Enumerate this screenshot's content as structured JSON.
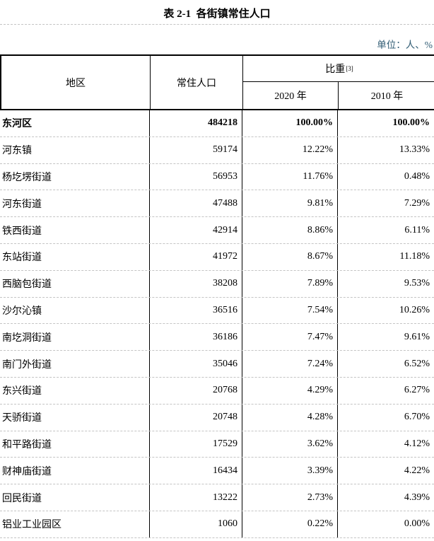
{
  "page": {
    "title": "表 2-1  各街镇常住人口",
    "unit_label": "单位：人、%",
    "colors": {
      "unit_text": "#2f5b73",
      "table_border": "#000000",
      "row_separator": "#c4c4c4"
    }
  },
  "table": {
    "headers": {
      "region": "地区",
      "population": "常住人口",
      "proportion": "比重",
      "proportion_note": "[3]",
      "year_2020": "2020 年",
      "year_2010": "2010 年"
    },
    "rows": [
      {
        "name": "东河区",
        "population": "484218",
        "p2020": "100.00%",
        "p2010": "100.00%"
      },
      {
        "name": "河东镇",
        "population": "59174",
        "p2020": "12.22%",
        "p2010": "13.33%"
      },
      {
        "name": "杨圪塄街道",
        "population": "56953",
        "p2020": "11.76%",
        "p2010": "0.48%"
      },
      {
        "name": "河东街道",
        "population": "47488",
        "p2020": "9.81%",
        "p2010": "7.29%"
      },
      {
        "name": "铁西街道",
        "population": "42914",
        "p2020": "8.86%",
        "p2010": "6.11%"
      },
      {
        "name": "东站街道",
        "population": "41972",
        "p2020": "8.67%",
        "p2010": "11.18%"
      },
      {
        "name": "西脑包街道",
        "population": "38208",
        "p2020": "7.89%",
        "p2010": "9.53%"
      },
      {
        "name": "沙尔沁镇",
        "population": "36516",
        "p2020": "7.54%",
        "p2010": "10.26%"
      },
      {
        "name": "南圪洞街道",
        "population": "36186",
        "p2020": "7.47%",
        "p2010": "9.61%"
      },
      {
        "name": "南门外街道",
        "population": "35046",
        "p2020": "7.24%",
        "p2010": "6.52%"
      },
      {
        "name": "东兴街道",
        "population": "20768",
        "p2020": "4.29%",
        "p2010": "6.27%"
      },
      {
        "name": "天骄街道",
        "population": "20748",
        "p2020": "4.28%",
        "p2010": "6.70%"
      },
      {
        "name": "和平路街道",
        "population": "17529",
        "p2020": "3.62%",
        "p2010": "4.12%"
      },
      {
        "name": "财神庙街道",
        "population": "16434",
        "p2020": "3.39%",
        "p2010": "4.22%"
      },
      {
        "name": "回民街道",
        "population": "13222",
        "p2020": "2.73%",
        "p2010": "4.39%"
      },
      {
        "name": "铝业工业园区",
        "population": "1060",
        "p2020": "0.22%",
        "p2010": "0.00%"
      }
    ]
  }
}
